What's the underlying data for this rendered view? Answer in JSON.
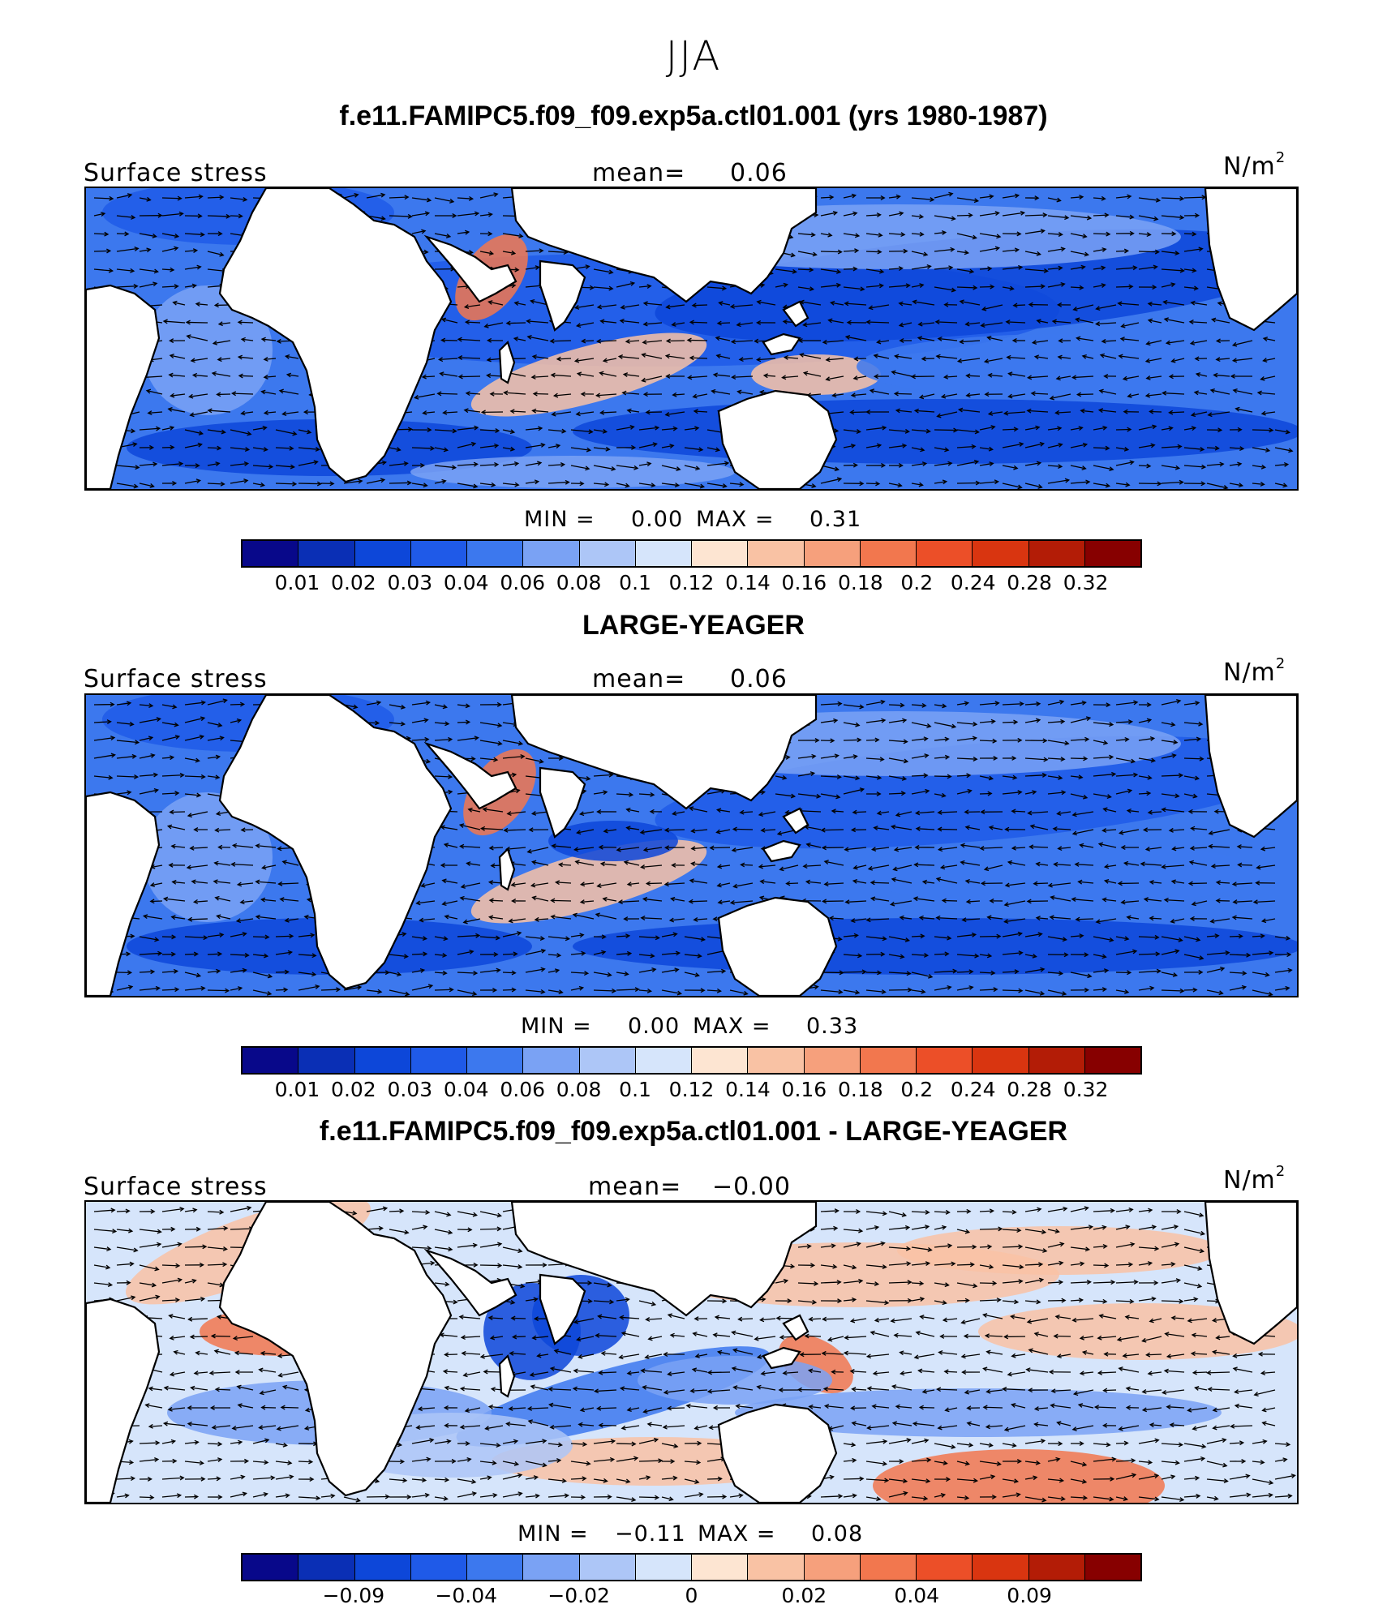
{
  "season": "JJA",
  "panels": [
    {
      "title": "f.e11.FAMIPC5.f09_f09.exp5a.ctl01.001 (yrs 1980-1987)",
      "variable": "Surface stress",
      "mean_label": "mean=",
      "mean_value": "0.06",
      "units": "N/m",
      "units_sup": "2",
      "min_label": "MIN =",
      "min_value": "0.00",
      "max_label": "MAX =",
      "max_value": "0.31",
      "palette": "abs",
      "colorbar_ticks": [
        "0.01",
        "0.02",
        "0.03",
        "0.04",
        "0.06",
        "0.08",
        "0.1",
        "0.12",
        "0.14",
        "0.16",
        "0.18",
        "0.2",
        "0.24",
        "0.28",
        "0.32"
      ]
    },
    {
      "title": "LARGE-YEAGER",
      "variable": "Surface stress",
      "mean_label": "mean=",
      "mean_value": "0.06",
      "units": "N/m",
      "units_sup": "2",
      "min_label": "MIN =",
      "min_value": "0.00",
      "max_label": "MAX =",
      "max_value": "0.33",
      "palette": "abs",
      "colorbar_ticks": [
        "0.01",
        "0.02",
        "0.03",
        "0.04",
        "0.06",
        "0.08",
        "0.1",
        "0.12",
        "0.14",
        "0.16",
        "0.18",
        "0.2",
        "0.24",
        "0.28",
        "0.32"
      ]
    },
    {
      "title": "f.e11.FAMIPC5.f09_f09.exp5a.ctl01.001 - LARGE-YEAGER",
      "variable": "Surface stress",
      "mean_label": "mean=",
      "mean_value": "−0.00",
      "units": "N/m",
      "units_sup": "2",
      "min_label": "MIN =",
      "min_value": "−0.11",
      "max_label": "MAX =",
      "max_value": "0.08",
      "palette": "diff",
      "colorbar_ticks": [
        "−0.09",
        "−0.04",
        "−0.02",
        "0",
        "0.02",
        "0.04",
        "0.09"
      ]
    }
  ],
  "colors": {
    "colorbar": [
      "#08088a",
      "#0a2fb5",
      "#0d47d9",
      "#1f5ae8",
      "#3c78ee",
      "#7aa2f4",
      "#adc6f7",
      "#d6e5fb",
      "#fde5d2",
      "#f9c2a4",
      "#f6a07c",
      "#f2774e",
      "#ec4f28",
      "#d93510",
      "#b31c06",
      "#870000"
    ],
    "land": "#ffffff",
    "coast": "#000000"
  }
}
